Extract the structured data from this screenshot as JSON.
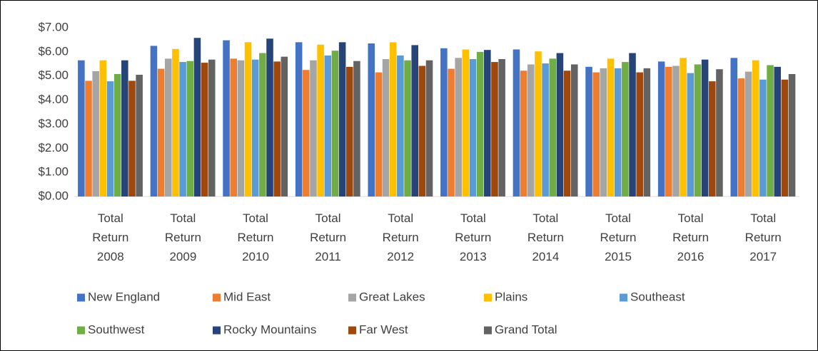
{
  "chart_data": {
    "type": "bar",
    "categories": [
      "Total Return 2008",
      "Total Return 2009",
      "Total Return 2010",
      "Total Return 2011",
      "Total Return 2012",
      "Total Return 2013",
      "Total Return 2014",
      "Total Return 2015",
      "Total Return 2016",
      "Total Return 2017"
    ],
    "series": [
      {
        "name": "New England",
        "color": "#4472c4",
        "values": [
          5.65,
          6.25,
          6.48,
          6.4,
          6.35,
          6.15,
          6.1,
          5.38,
          5.6,
          5.75
        ]
      },
      {
        "name": "Mid East",
        "color": "#ed7d31",
        "values": [
          4.8,
          5.3,
          5.72,
          5.25,
          5.15,
          5.3,
          5.22,
          5.15,
          5.38,
          4.9
        ]
      },
      {
        "name": "Great Lakes",
        "color": "#a5a5a5",
        "values": [
          5.2,
          5.72,
          5.65,
          5.65,
          5.7,
          5.75,
          5.48,
          5.32,
          5.42,
          5.18
        ]
      },
      {
        "name": "Plains",
        "color": "#ffc000",
        "values": [
          5.65,
          6.12,
          6.4,
          6.3,
          6.4,
          6.1,
          6.02,
          5.72,
          5.75,
          5.65
        ]
      },
      {
        "name": "Southeast",
        "color": "#5b9bd5",
        "values": [
          4.78,
          5.58,
          5.68,
          5.85,
          5.85,
          5.7,
          5.52,
          5.32,
          5.12,
          4.85
        ]
      },
      {
        "name": "Southwest",
        "color": "#70ad47",
        "values": [
          5.08,
          5.62,
          5.95,
          6.05,
          5.65,
          6.0,
          5.72,
          5.58,
          5.48,
          5.45
        ]
      },
      {
        "name": "Rocky Mountains",
        "color": "#264478",
        "values": [
          5.65,
          6.58,
          6.55,
          6.4,
          6.28,
          6.08,
          5.95,
          5.95,
          5.68,
          5.38
        ]
      },
      {
        "name": "Far West",
        "color": "#9e480e",
        "values": [
          4.8,
          5.55,
          5.6,
          5.38,
          5.42,
          5.58,
          5.22,
          5.15,
          4.78,
          4.85
        ]
      },
      {
        "name": "Grand Total",
        "color": "#636363",
        "values": [
          5.05,
          5.68,
          5.8,
          5.62,
          5.65,
          5.7,
          5.48,
          5.32,
          5.28,
          5.08
        ]
      }
    ],
    "ylim": [
      0,
      7
    ],
    "yticks": [
      {
        "value": 0,
        "label": "$0.00"
      },
      {
        "value": 1,
        "label": "$1.00"
      },
      {
        "value": 2,
        "label": "$2.00"
      },
      {
        "value": 3,
        "label": "$3.00"
      },
      {
        "value": 4,
        "label": "$4.00"
      },
      {
        "value": 5,
        "label": "$5.00"
      },
      {
        "value": 6,
        "label": "$6.00"
      },
      {
        "value": 7,
        "label": "$7.00"
      }
    ],
    "grid": false,
    "legend": "bottom"
  }
}
